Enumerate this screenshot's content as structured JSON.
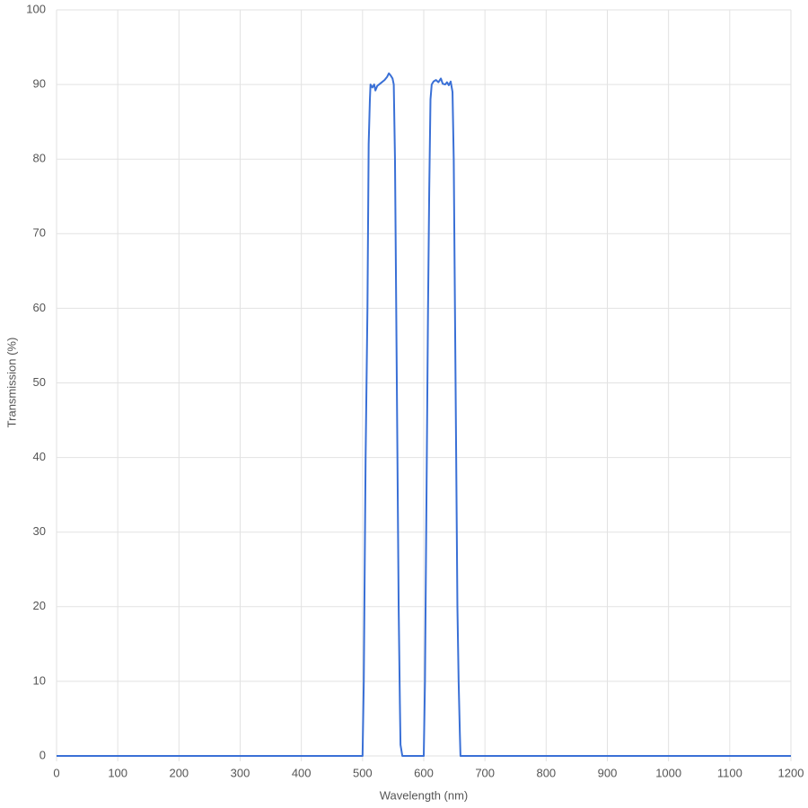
{
  "chart_data": {
    "type": "line",
    "x_label": "Wavelength (nm)",
    "y_label": "Transmission (%)",
    "color": "#3a70d6",
    "grid": true,
    "xlim": [
      0,
      1200
    ],
    "xticks": [
      0,
      100,
      200,
      300,
      400,
      500,
      600,
      700,
      800,
      900,
      1000,
      1100,
      1200
    ],
    "ylim": [
      0,
      100
    ],
    "yticks": [
      0,
      10,
      20,
      30,
      40,
      50,
      60,
      70,
      80,
      90,
      100
    ],
    "x": [
      0,
      500,
      502,
      505,
      508,
      510,
      512,
      513,
      516,
      519,
      521,
      524,
      530,
      536,
      540,
      543,
      546,
      549,
      551,
      553,
      555,
      557,
      559,
      561,
      562,
      565,
      600,
      602,
      605,
      607,
      609,
      611,
      613,
      616,
      620,
      624,
      628,
      631,
      635,
      638,
      641,
      644,
      647,
      649,
      651,
      653,
      655,
      657,
      659,
      660,
      1200
    ],
    "values": [
      0,
      0,
      10,
      40,
      60,
      82,
      88,
      90,
      89.6,
      90,
      89.2,
      89.8,
      90.2,
      90.6,
      91,
      91.5,
      91.2,
      90.8,
      90,
      80,
      60,
      40,
      20,
      7,
      1.5,
      0,
      0,
      10,
      40,
      60,
      76,
      88,
      90,
      90.4,
      90.6,
      90.3,
      90.8,
      90.1,
      90,
      90.3,
      89.9,
      90.4,
      89,
      80,
      60,
      40,
      20,
      10,
      3,
      0,
      0
    ]
  }
}
